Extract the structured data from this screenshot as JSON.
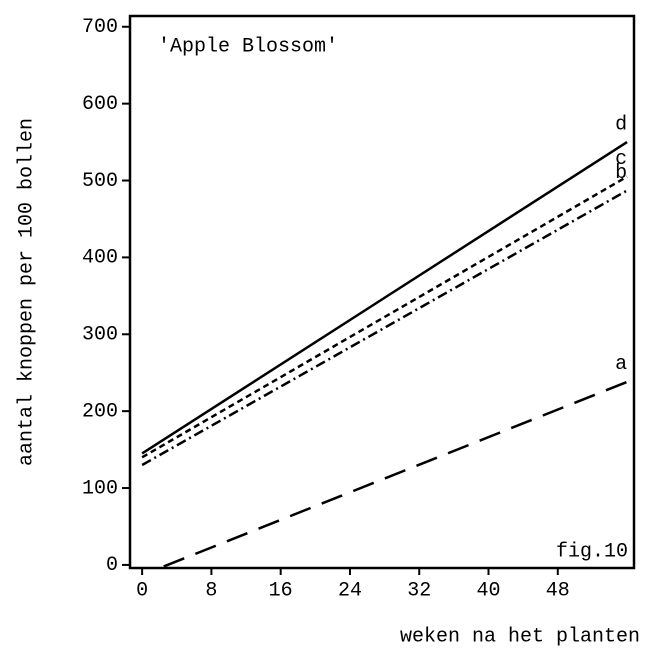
{
  "chart_data": {
    "type": "line",
    "title": "'Apple Blossom'",
    "annotation": "fig.10",
    "xlabel": "weken na het planten",
    "ylabel": "aantal knoppen per 100 bollen",
    "xlim": [
      -1.4,
      56.8
    ],
    "xticks": [
      0,
      8,
      16,
      24,
      32,
      40,
      48
    ],
    "ylim": [
      -4,
      714
    ],
    "yticks": [
      0,
      100,
      200,
      300,
      400,
      500,
      600,
      700
    ],
    "series": [
      {
        "name": "a",
        "color": "#000000",
        "dash": "22 12",
        "x": [
          2.5,
          56
        ],
        "values": [
          -2,
          238
        ]
      },
      {
        "name": "b",
        "color": "#000000",
        "dash": "10 4 2 4",
        "x": [
          0,
          56
        ],
        "values": [
          130,
          487
        ]
      },
      {
        "name": "c",
        "color": "#000000",
        "dash": "6 4",
        "x": [
          0,
          56
        ],
        "values": [
          140,
          505
        ]
      },
      {
        "name": "d",
        "color": "#000000",
        "dash": "none",
        "x": [
          0,
          56
        ],
        "values": [
          145,
          550
        ]
      }
    ]
  }
}
